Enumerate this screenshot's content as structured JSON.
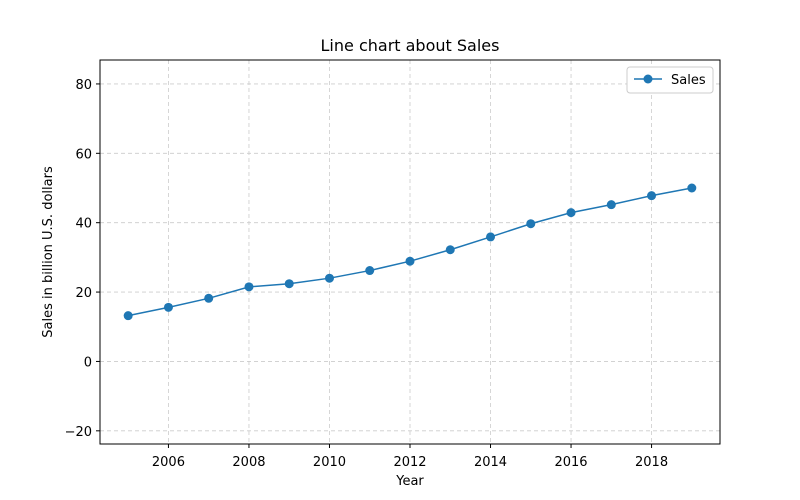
{
  "chart_data": {
    "type": "line",
    "title": "Line chart about Sales",
    "xlabel": "Year",
    "ylabel": "Sales in billion U.S. dollars",
    "xlim": [
      2004.3,
      2019.7
    ],
    "ylim": [
      -23.8,
      86.9
    ],
    "xticks": [
      2006,
      2008,
      2010,
      2012,
      2014,
      2016,
      2018
    ],
    "yticks": [
      -20,
      0,
      20,
      40,
      60,
      80
    ],
    "grid": true,
    "legend": "top-right",
    "series": [
      {
        "name": "Sales",
        "color": "#1f77b4",
        "marker": "circle",
        "x": [
          2005,
          2006,
          2007,
          2008,
          2009,
          2010,
          2011,
          2012,
          2013,
          2014,
          2015,
          2016,
          2017,
          2018,
          2019
        ],
        "values": [
          13.2,
          15.6,
          18.2,
          21.5,
          22.4,
          24.0,
          26.2,
          28.9,
          32.2,
          35.9,
          39.7,
          42.9,
          45.2,
          47.8,
          50.0
        ]
      }
    ]
  }
}
